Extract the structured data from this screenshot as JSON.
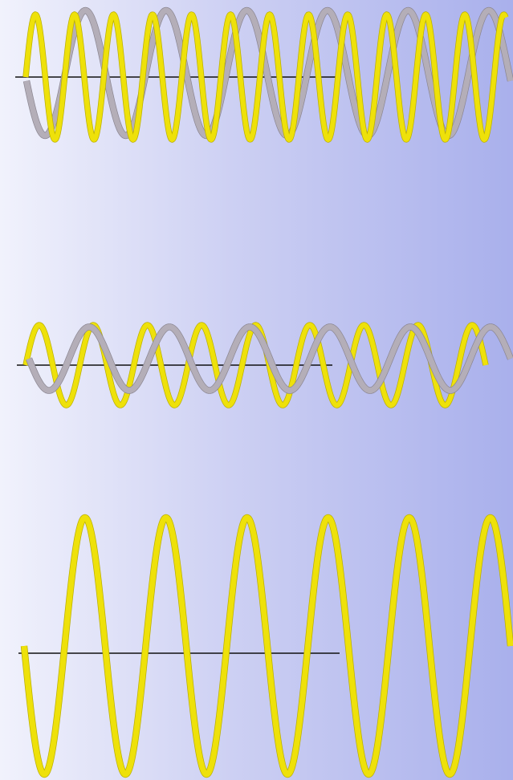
{
  "colors": {
    "primary_wave": "#eee10a",
    "primary_wave_outline": "#b8ad00",
    "secondary_wave": "#b4aeb8",
    "secondary_wave_outline": "#8a8590",
    "axis": "#111111",
    "background_left": "#f1f2fc",
    "background_right": "#a9b0ec"
  },
  "panels": [
    {
      "id": "top",
      "waves": [
        {
          "role": "primary",
          "cycles_across": 12.3,
          "relative_amplitude": 1.0
        },
        {
          "role": "secondary",
          "cycles_across": 6.0,
          "relative_amplitude": 1.0
        }
      ]
    },
    {
      "id": "middle",
      "waves": [
        {
          "role": "primary",
          "cycles_across": 8.5,
          "relative_amplitude": 1.0
        },
        {
          "role": "secondary",
          "cycles_across": 6.0,
          "relative_amplitude": 0.88
        }
      ]
    },
    {
      "id": "bottom",
      "waves": [
        {
          "role": "primary",
          "cycles_across": 6.0,
          "relative_amplitude": 1.0
        }
      ]
    }
  ]
}
